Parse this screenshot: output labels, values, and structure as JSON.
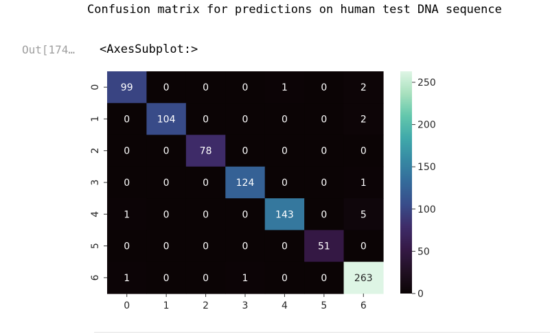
{
  "cell": {
    "stdout_text": "Confusion matrix for predictions on human test DNA sequence",
    "prompt_label": "Out[174…",
    "output_repr": "<AxesSubplot:>"
  },
  "chart_data": {
    "type": "heatmap",
    "title": "",
    "xlabel": "",
    "ylabel": "",
    "x_categories": [
      "0",
      "1",
      "2",
      "3",
      "4",
      "5",
      "6"
    ],
    "y_categories": [
      "0",
      "1",
      "2",
      "3",
      "4",
      "5",
      "6"
    ],
    "values": [
      [
        99,
        0,
        0,
        0,
        1,
        0,
        2
      ],
      [
        0,
        104,
        0,
        0,
        0,
        0,
        2
      ],
      [
        0,
        0,
        78,
        0,
        0,
        0,
        0
      ],
      [
        0,
        0,
        0,
        124,
        0,
        0,
        1
      ],
      [
        1,
        0,
        0,
        0,
        143,
        0,
        5
      ],
      [
        0,
        0,
        0,
        0,
        0,
        51,
        0
      ],
      [
        1,
        0,
        0,
        1,
        0,
        0,
        263
      ]
    ],
    "colormap": "mako",
    "colorbar": {
      "min": 0,
      "max": 263,
      "ticks": [
        0,
        50,
        100,
        150,
        200,
        250
      ]
    },
    "annotations": true,
    "grid": false
  }
}
